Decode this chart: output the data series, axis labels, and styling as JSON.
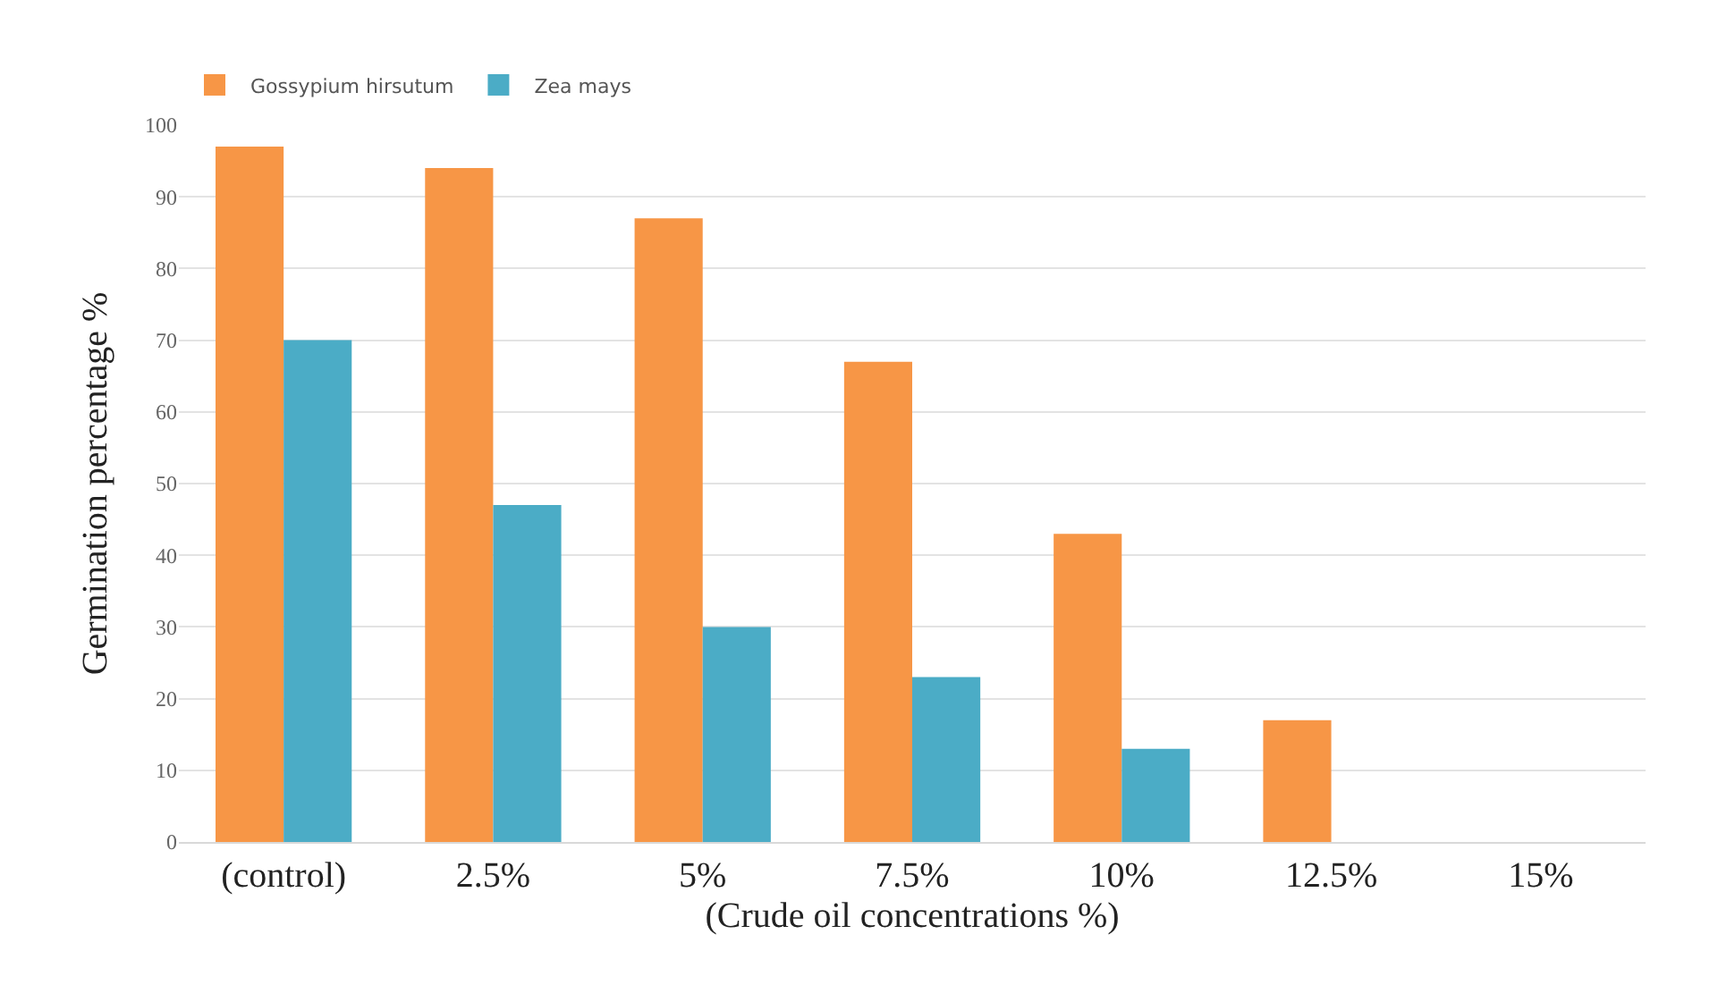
{
  "chart_data": {
    "type": "bar",
    "xlabel": "(Crude oil concentrations %)",
    "ylabel": "Germination percentage %",
    "categories": [
      "(control)",
      "2.5%",
      "5%",
      "7.5%",
      "10%",
      "12.5%",
      "15%"
    ],
    "series": [
      {
        "name": "Gossypium hirsutum",
        "color": "#f79646",
        "values": [
          97,
          94,
          87,
          67,
          43,
          17,
          0
        ]
      },
      {
        "name": "Zea mays",
        "color": "#4bacc6",
        "values": [
          70,
          47,
          30,
          23,
          13,
          0,
          0
        ]
      }
    ],
    "ylim": [
      0,
      100
    ],
    "yticks": [
      0,
      10,
      20,
      30,
      40,
      50,
      60,
      70,
      80,
      90,
      100
    ],
    "grid": "y",
    "legend": "top left"
  }
}
